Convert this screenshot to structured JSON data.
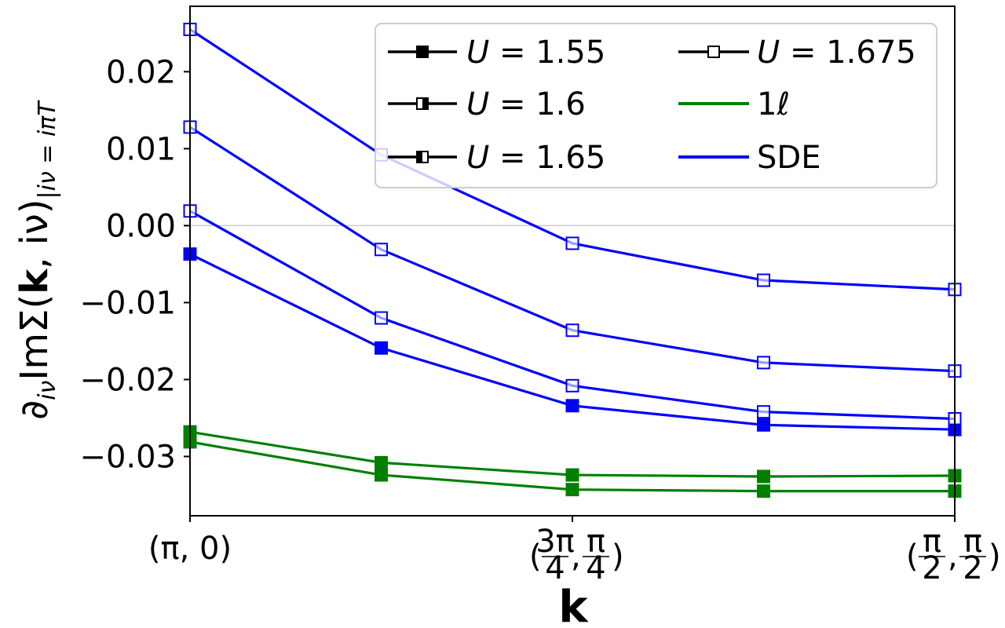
{
  "chart_data": {
    "type": "line",
    "x_tick_labels": [
      {
        "x": 0,
        "main": "(π, 0)"
      },
      {
        "x": 2,
        "main": "(3π/4, π/4)",
        "parts": [
          "(",
          "3π",
          "4",
          ",",
          "π",
          "4",
          ")"
        ]
      },
      {
        "x": 4,
        "main": "(π/2, π/2)",
        "parts": [
          "(",
          "π",
          "2",
          ",",
          "π",
          "2",
          ")"
        ]
      }
    ],
    "y_tick_labels": [
      "0.02",
      "0.01",
      "0.00",
      "−0.01",
      "−0.02",
      "−0.03"
    ],
    "y_ticks": [
      0.02,
      0.01,
      0.0,
      -0.01,
      -0.02,
      -0.03
    ],
    "xlim": [
      0,
      4
    ],
    "ylim": [
      -0.0377,
      0.0285
    ],
    "xlabel": "k",
    "ylabel": {
      "prefix": "∂",
      "prefix_sub": "iν",
      "main": "ImΣ(",
      "bold": "k",
      "mid": ", iν)",
      "sub": "|iν = iπT"
    },
    "x": [
      0,
      1,
      2,
      3,
      4
    ],
    "series": [
      {
        "name": "U = 1.55",
        "method": "1ℓ",
        "marker": "filled",
        "values": [
          -0.0281,
          -0.0324,
          -0.0343,
          -0.0345,
          -0.0345
        ]
      },
      {
        "name": "U = 1.6",
        "method": "1ℓ",
        "marker": "filled",
        "values": [
          -0.0268,
          -0.0308,
          -0.0324,
          -0.0326,
          -0.0325
        ]
      },
      {
        "name": "U = 1.55",
        "method": "SDE",
        "marker": "filled",
        "values": [
          -0.0037,
          -0.0159,
          -0.0234,
          -0.0259,
          -0.0265
        ]
      },
      {
        "name": "U = 1.6",
        "method": "SDE",
        "marker": "open",
        "values": [
          0.0019,
          -0.012,
          -0.0208,
          -0.0242,
          -0.0251
        ]
      },
      {
        "name": "U = 1.65",
        "method": "SDE",
        "marker": "open",
        "values": [
          0.0128,
          -0.0031,
          -0.0136,
          -0.0178,
          -0.0189
        ]
      },
      {
        "name": "U = 1.675",
        "method": "SDE",
        "marker": "open",
        "values": [
          0.0255,
          0.0092,
          -0.0023,
          -0.0071,
          -0.0083
        ]
      }
    ],
    "legend": {
      "position": "top-right",
      "entries": [
        {
          "label_pre": "U",
          "label": " = 1.55",
          "kind": "marker",
          "marker": "filled"
        },
        {
          "label_pre": "U",
          "label": " = 1.675",
          "kind": "marker",
          "marker": "open"
        },
        {
          "label_pre": "U",
          "label": " = 1.6",
          "kind": "marker",
          "marker": "half-right"
        },
        {
          "label_pre": "",
          "label": "1ℓ",
          "kind": "line",
          "color": "#008000"
        },
        {
          "label_pre": "U",
          "label": " = 1.65",
          "kind": "marker",
          "marker": "half-left"
        },
        {
          "label_pre": "",
          "label": "SDE",
          "kind": "line",
          "color": "#0000ff"
        }
      ]
    },
    "colors": {
      "1ℓ": "#008000",
      "SDE": "#0000ff",
      "reference_line": "#cccccc",
      "axis": "#000000"
    },
    "grid": false
  }
}
